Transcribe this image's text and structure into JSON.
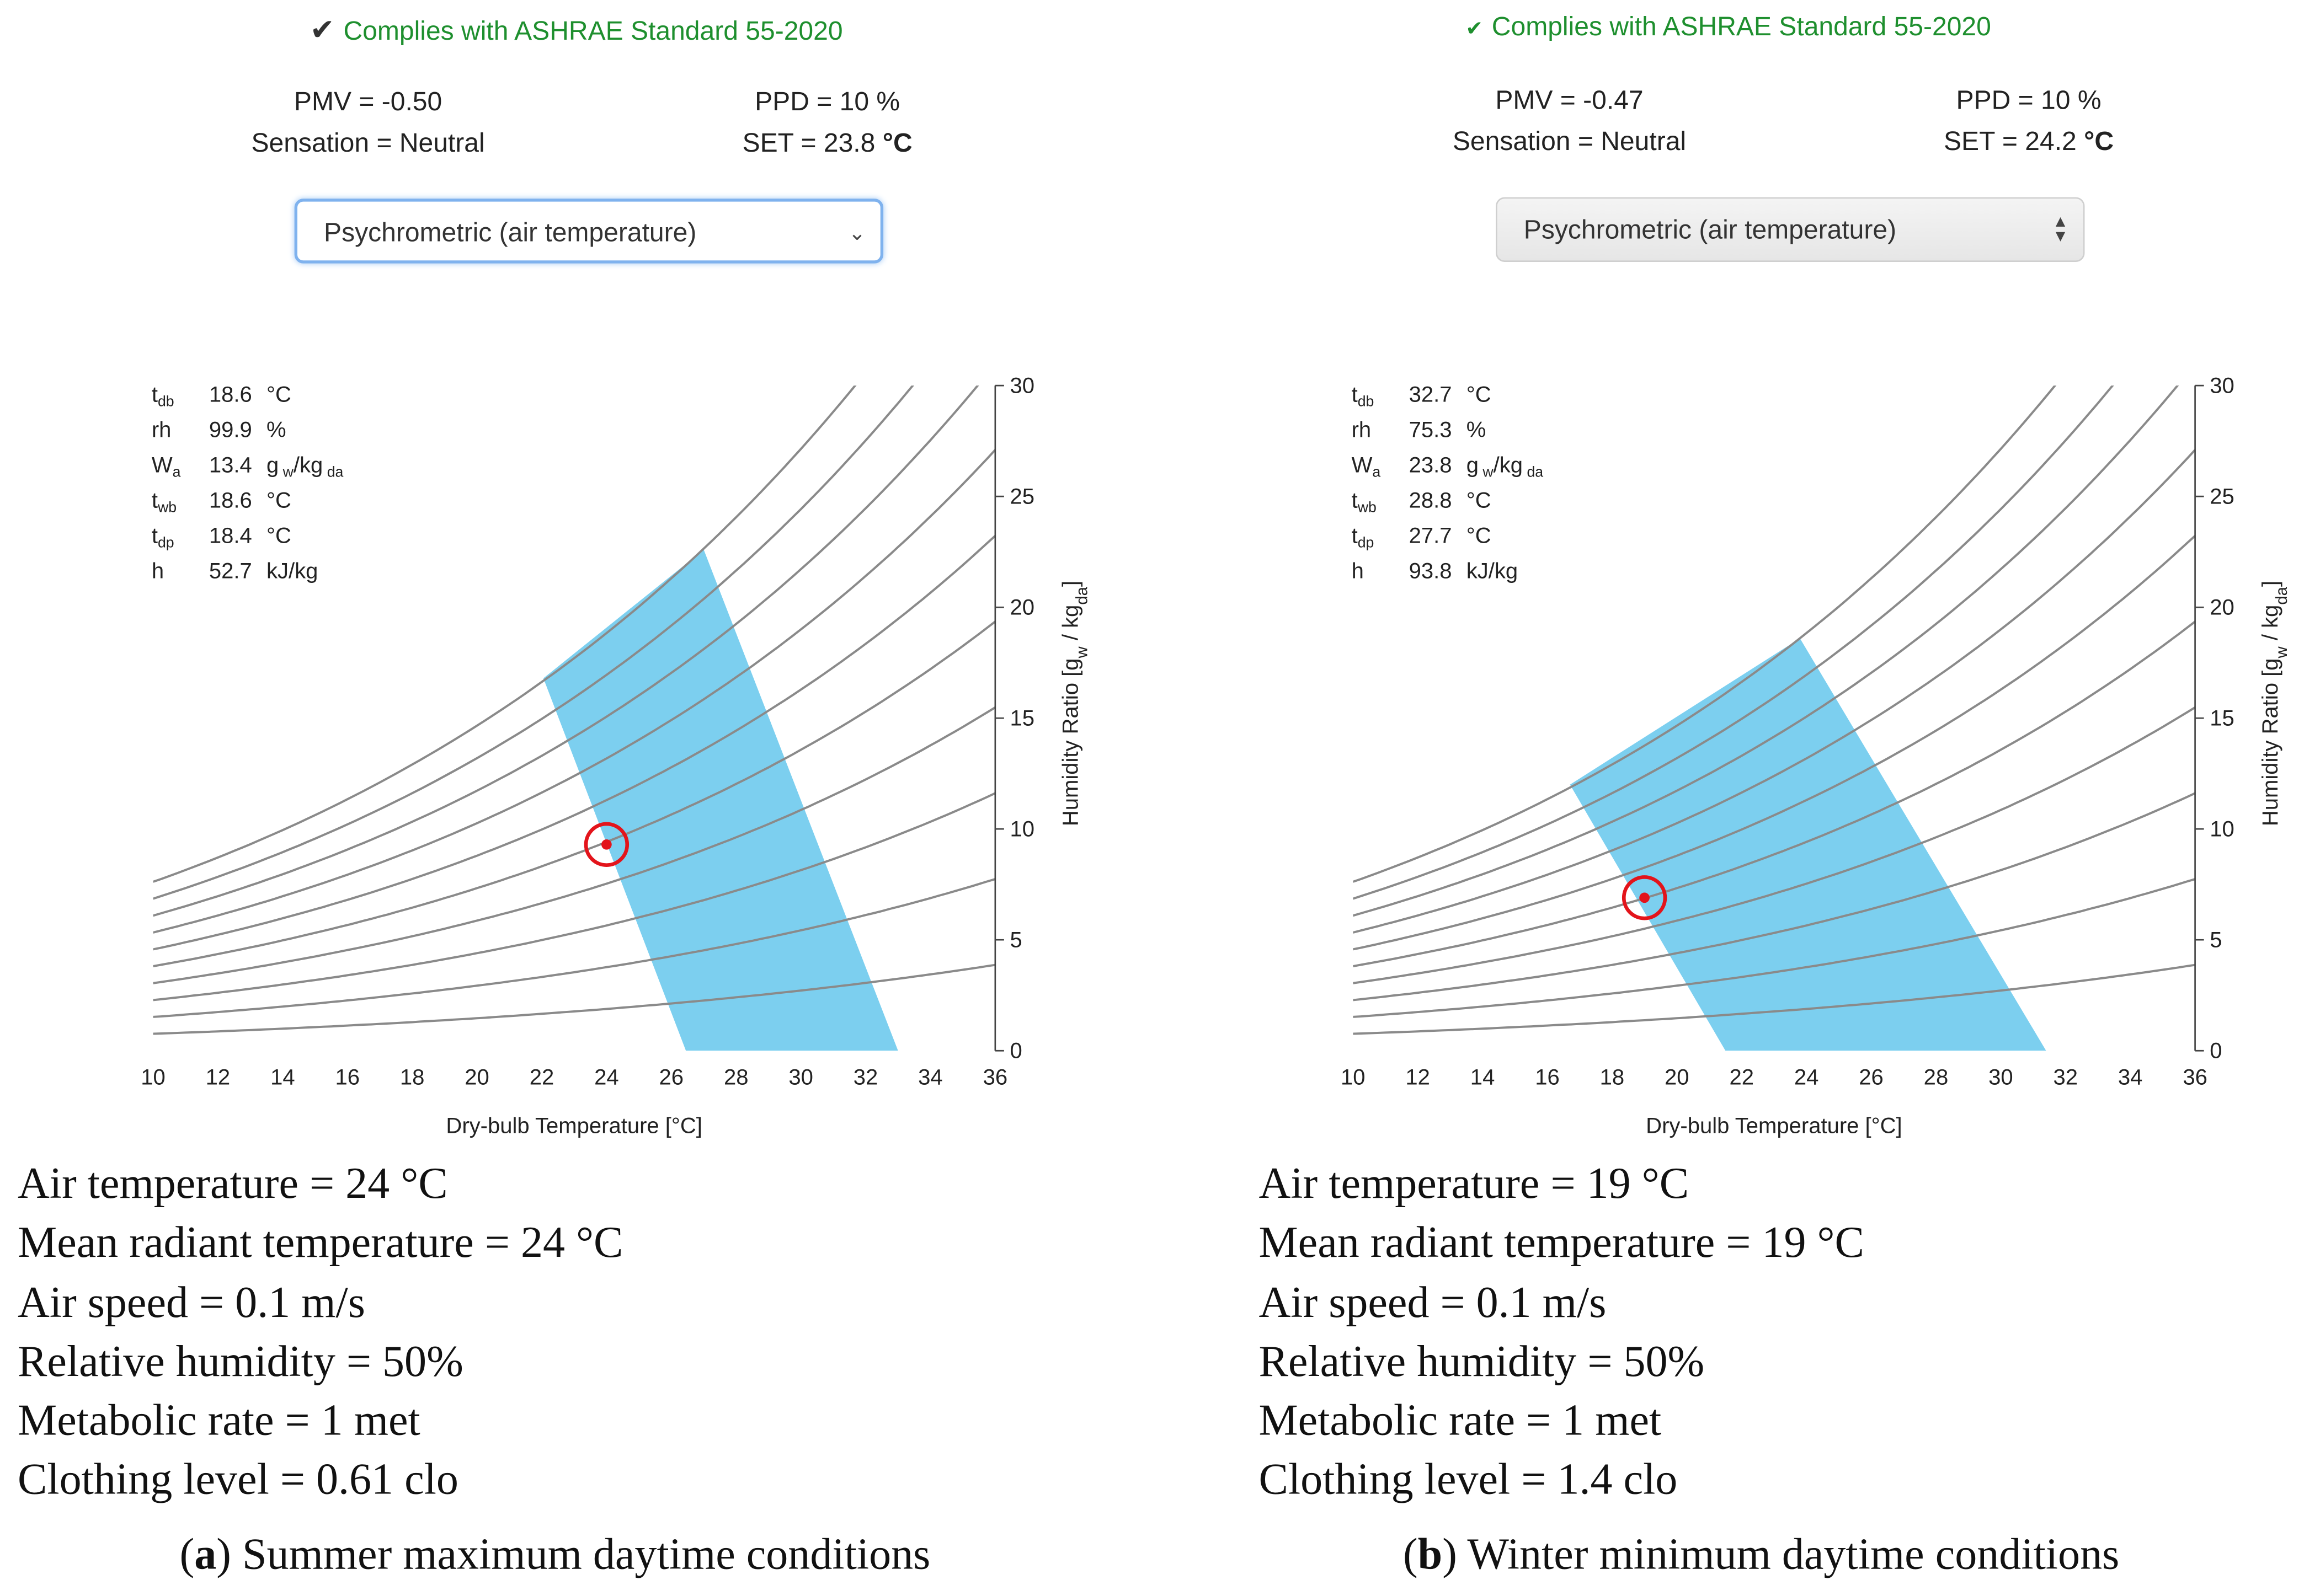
{
  "chart_data": [
    {
      "type": "psychrometric",
      "panel_label": "a",
      "caption": "Summer maximum daytime conditions",
      "compliance": "Complies with ASHRAE Standard 55-2020",
      "pmv": "PMV = -0.50",
      "ppd": "PPD = 10 %",
      "sensation": "Sensation = Neutral",
      "set_label": "SET = 23.8",
      "set_unit": "°C",
      "chart_selector": "Psychrometric (air temperature)",
      "xlabel": "Dry-bulb Temperature [°C]",
      "ylabel": "Humidity Ratio [g",
      "ylabel_sub1": "w",
      "ylabel_mid": " / kg",
      "ylabel_sub2": "da",
      "ylabel_end": "]",
      "xlim": [
        10,
        36
      ],
      "ylim": [
        0,
        30
      ],
      "xticks": [
        10,
        12,
        14,
        16,
        18,
        20,
        22,
        24,
        26,
        28,
        30,
        32,
        34,
        36
      ],
      "yticks": [
        0,
        5,
        10,
        15,
        20,
        25,
        30
      ],
      "rh_curves_percent": [
        10,
        20,
        30,
        40,
        50,
        60,
        70,
        80,
        90,
        100
      ],
      "comfort_zone": [
        [
          26.45,
          0
        ],
        [
          33.0,
          0
        ],
        [
          27.0,
          22.6
        ],
        [
          22.05,
          16.8
        ]
      ],
      "point": {
        "x": 24,
        "y": 9.3
      },
      "info": {
        "tdb": {
          "label": "t",
          "sub": "db",
          "value": "18.6",
          "unit": "°C"
        },
        "rh": {
          "label": "rh",
          "value": "99.9",
          "unit": "%"
        },
        "wa": {
          "label": "W",
          "sub": "a",
          "value": "13.4",
          "unit": "g",
          "unit_sub1": "w",
          "unit_mid": "/kg",
          "unit_sub2": "da"
        },
        "twb": {
          "label": "t",
          "sub": "wb",
          "value": "18.6",
          "unit": "°C"
        },
        "tdp": {
          "label": "t",
          "sub": "dp",
          "value": "18.4",
          "unit": "°C"
        },
        "h": {
          "label": "h",
          "value": "52.7",
          "unit": "kJ/kg"
        }
      },
      "params": [
        "Air temperature = 24 °C",
        "Mean radiant temperature = 24 °C",
        "Air speed = 0.1 m/s",
        "Relative humidity = 50%",
        "Metabolic rate = 1 met",
        "Clothing level = 0.61 clo"
      ],
      "colors": {
        "zone": "#7ccfef",
        "curve": "#8a8a8a",
        "point": "#e3141b"
      }
    },
    {
      "type": "psychrometric",
      "panel_label": "b",
      "caption": "Winter minimum daytime conditions",
      "compliance": "Complies with ASHRAE Standard 55-2020",
      "pmv": "PMV = -0.47",
      "ppd": "PPD = 10 %",
      "sensation": "Sensation = Neutral",
      "set_label": "SET = 24.2",
      "set_unit": "°C",
      "chart_selector": "Psychrometric (air temperature)",
      "xlabel": "Dry-bulb Temperature [°C]",
      "ylabel": "Humidity Ratio [g",
      "ylabel_sub1": "w",
      "ylabel_mid": " / kg",
      "ylabel_sub2": "da",
      "ylabel_end": "]",
      "xlim": [
        10,
        36
      ],
      "ylim": [
        0,
        30
      ],
      "xticks": [
        10,
        12,
        14,
        16,
        18,
        20,
        22,
        24,
        26,
        28,
        30,
        32,
        34,
        36
      ],
      "yticks": [
        0,
        5,
        10,
        15,
        20,
        25,
        30
      ],
      "rh_curves_percent": [
        10,
        20,
        30,
        40,
        50,
        60,
        70,
        80,
        90,
        100
      ],
      "comfort_zone": [
        [
          21.5,
          0
        ],
        [
          31.4,
          0
        ],
        [
          23.8,
          18.6
        ],
        [
          16.7,
          12.0
        ]
      ],
      "point": {
        "x": 19,
        "y": 6.9
      },
      "info": {
        "tdb": {
          "label": "t",
          "sub": "db",
          "value": "32.7",
          "unit": "°C"
        },
        "rh": {
          "label": "rh",
          "value": "75.3",
          "unit": "%"
        },
        "wa": {
          "label": "W",
          "sub": "a",
          "value": "23.8",
          "unit": "g",
          "unit_sub1": "w",
          "unit_mid": "/kg",
          "unit_sub2": "da"
        },
        "twb": {
          "label": "t",
          "sub": "wb",
          "value": "28.8",
          "unit": "°C"
        },
        "tdp": {
          "label": "t",
          "sub": "dp",
          "value": "27.7",
          "unit": "°C"
        },
        "h": {
          "label": "h",
          "value": "93.8",
          "unit": "kJ/kg"
        }
      },
      "params": [
        "Air temperature = 19 °C",
        "Mean radiant temperature = 19 °C",
        "Air speed = 0.1 m/s",
        "Relative humidity = 50%",
        "Metabolic rate = 1 met",
        "Clothing level = 1.4 clo"
      ],
      "colors": {
        "zone": "#7ccfef",
        "curve": "#8a8a8a",
        "point": "#e3141b"
      }
    }
  ]
}
